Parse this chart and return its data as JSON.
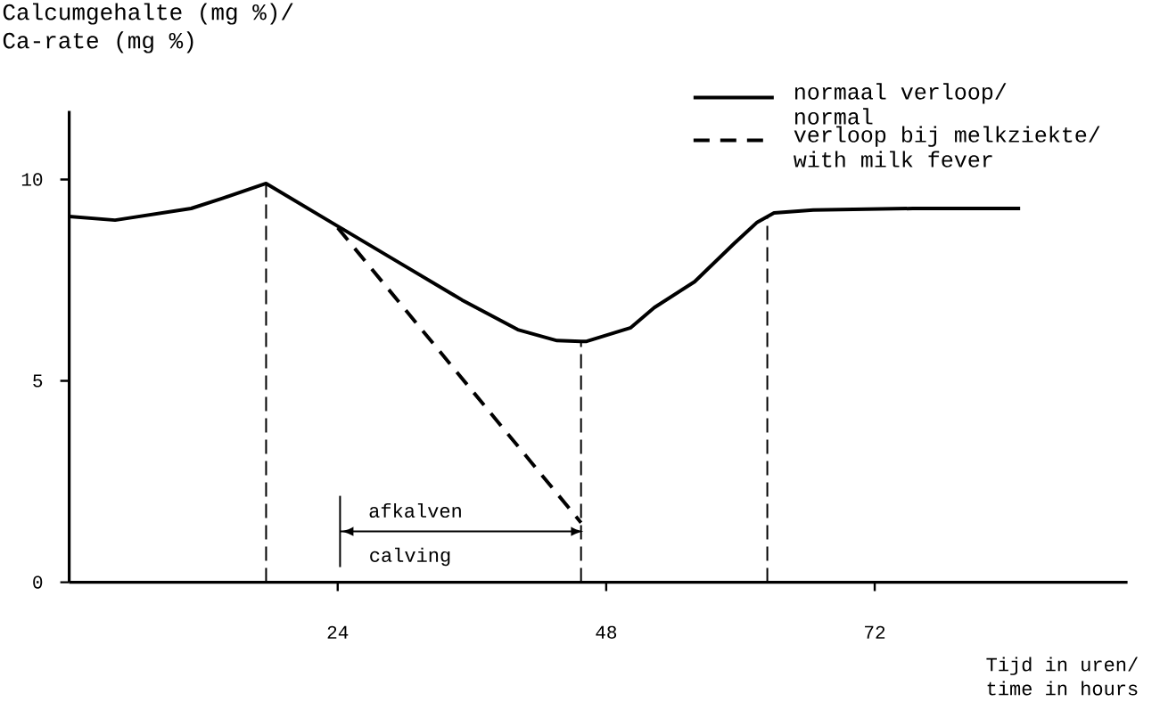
{
  "chart_data": {
    "type": "line",
    "ylabel": "Calcumgehalte (mg %)/ Ca-rate (mg %)",
    "xlabel": "Tijd in uren/ time in hours",
    "xlim": [
      0,
      94.6
    ],
    "xticks": [
      24,
      48,
      72
    ],
    "ylim": [
      0,
      11.7
    ],
    "yticks": [
      0,
      5,
      10
    ],
    "legend": "top right",
    "series": [
      {
        "name": "normaal verloop/ normal",
        "color": "#000000",
        "line_style": "solid",
        "x": [
          0,
          4.1,
          10.9,
          13.7,
          17.6,
          24.0,
          29.4,
          35.1,
          40.1,
          43.6,
          45.75,
          46.25,
          50.2,
          52.3,
          55.9,
          59.4,
          61.5,
          63.0,
          66.5,
          75.4,
          85.0
        ],
        "values": [
          9.08,
          8.99,
          9.28,
          9.53,
          9.9,
          8.84,
          7.95,
          7.01,
          6.27,
          6.0,
          5.98,
          5.98,
          6.32,
          6.82,
          7.46,
          8.4,
          8.94,
          9.17,
          9.24,
          9.28,
          9.28
        ]
      },
      {
        "name": "verloop bij melkziekte/ with milk fever",
        "color": "#000000",
        "line_style": "dashed",
        "x": [
          24.0,
          45.75
        ],
        "values": [
          8.8,
          1.48
        ]
      }
    ],
    "ref_lines": [
      {
        "axis": "x",
        "value": 17.6,
        "color": "#000000",
        "line_style": "dashed"
      },
      {
        "axis": "x",
        "value": 45.75,
        "color": "#000000",
        "line_style": "dashed"
      },
      {
        "axis": "x",
        "value": 62.4,
        "color": "#000000",
        "line_style": "dashed"
      }
    ],
    "annotations": [
      "afkalven",
      "calving"
    ]
  }
}
